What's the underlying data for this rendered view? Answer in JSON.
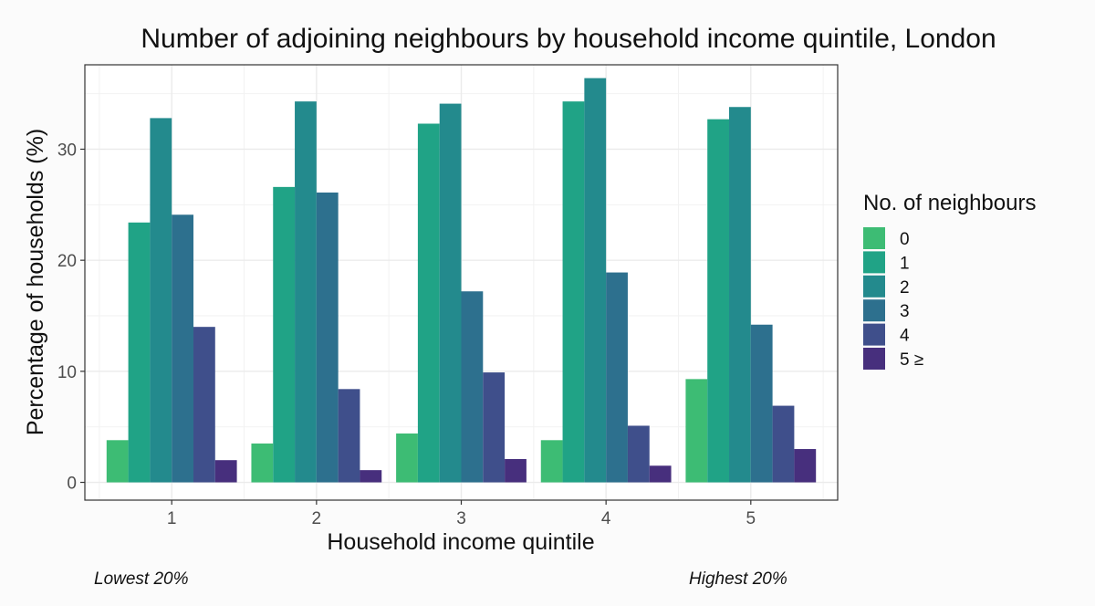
{
  "chart_data": {
    "type": "bar",
    "title": "Number of adjoining neighbours by household income quintile, London",
    "xlabel": "Household income quintile",
    "ylabel": "Percentage of households (%)",
    "categories": [
      "1",
      "2",
      "3",
      "4",
      "5"
    ],
    "ylim": [
      -1.6,
      37.6
    ],
    "yticks": [
      0,
      10,
      20,
      30
    ],
    "grid": true,
    "legend": {
      "title": "No. of neighbours",
      "position": "right"
    },
    "series": [
      {
        "name": "0",
        "color": "#3dbc74",
        "values": [
          3.8,
          3.5,
          4.4,
          3.8,
          9.3
        ]
      },
      {
        "name": "1",
        "color": "#20a386",
        "values": [
          23.4,
          26.6,
          32.3,
          34.3,
          32.7
        ]
      },
      {
        "name": "2",
        "color": "#238a8d",
        "values": [
          32.8,
          34.3,
          34.1,
          36.4,
          33.8
        ]
      },
      {
        "name": "3",
        "color": "#2d708e",
        "values": [
          24.1,
          26.1,
          17.2,
          18.9,
          14.2
        ]
      },
      {
        "name": "4",
        "color": "#3f4f8b",
        "values": [
          14.0,
          8.4,
          9.9,
          5.1,
          6.9
        ]
      },
      {
        "name": "5 ≥",
        "color": "#472f7d",
        "values": [
          2.0,
          1.1,
          2.1,
          1.5,
          3.0
        ]
      }
    ],
    "annotations": [
      "Lowest 20%",
      "Highest 20%"
    ]
  }
}
